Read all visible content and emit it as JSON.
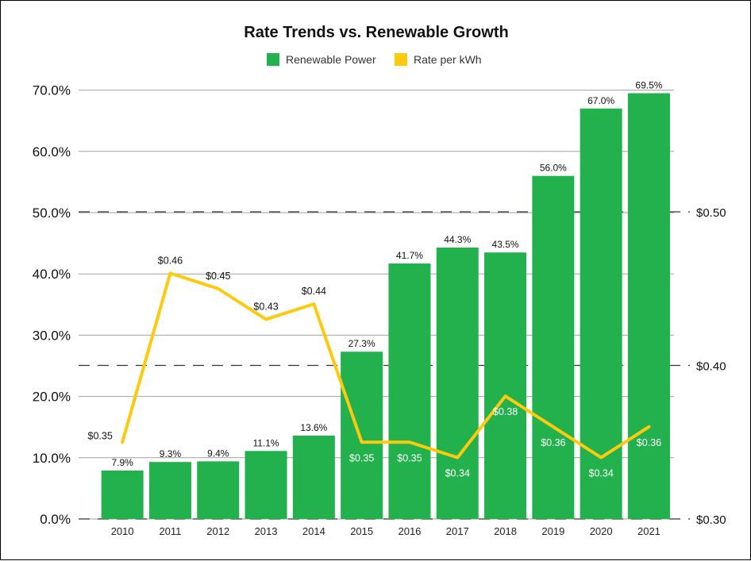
{
  "chart_data": {
    "type": "bar",
    "title": "Rate Trends vs. Renewable Growth",
    "categories": [
      "2010",
      "2011",
      "2012",
      "2013",
      "2014",
      "2015",
      "2016",
      "2017",
      "2018",
      "2019",
      "2020",
      "2021"
    ],
    "series": [
      {
        "name": "Renewable Power",
        "type": "bar",
        "axis": "left",
        "color": "#22b14c",
        "values": [
          7.9,
          9.3,
          9.4,
          11.1,
          13.6,
          27.3,
          41.7,
          44.3,
          43.5,
          56.0,
          67.0,
          69.5
        ],
        "labels": [
          "7.9%",
          "9.3%",
          "9.4%",
          "11.1%",
          "13.6%",
          "27.3%",
          "41.7%",
          "44.3%",
          "43.5%",
          "56.0%",
          "67.0%",
          "69.5%"
        ]
      },
      {
        "name": "Rate per kWh",
        "type": "line",
        "axis": "right",
        "color": "#ffc90e",
        "values": [
          0.35,
          0.46,
          0.45,
          0.43,
          0.44,
          0.35,
          0.35,
          0.34,
          0.38,
          0.36,
          0.34,
          0.36
        ],
        "labels": [
          "$0.35",
          "$0.46",
          "$0.45",
          "$0.43",
          "$0.44",
          "$0.35",
          "$0.35",
          "$0.34",
          "$0.38",
          "$0.36",
          "$0.34",
          "$0.36"
        ]
      }
    ],
    "y_left": {
      "range": [
        0,
        70
      ],
      "ticks": [
        0,
        10,
        20,
        30,
        40,
        50,
        60,
        70
      ],
      "tick_labels": [
        "0.0%",
        "10.0%",
        "20.0%",
        "30.0%",
        "40.0%",
        "50.0%",
        "60.0%",
        "70.0%"
      ]
    },
    "y_right": {
      "range": [
        0.3,
        0.58
      ],
      "ticks": [
        0.3,
        0.4,
        0.5
      ],
      "tick_labels": [
        "$0.30",
        "$0.40",
        "$0.50"
      ]
    },
    "grid": true,
    "legend": "top-center"
  }
}
